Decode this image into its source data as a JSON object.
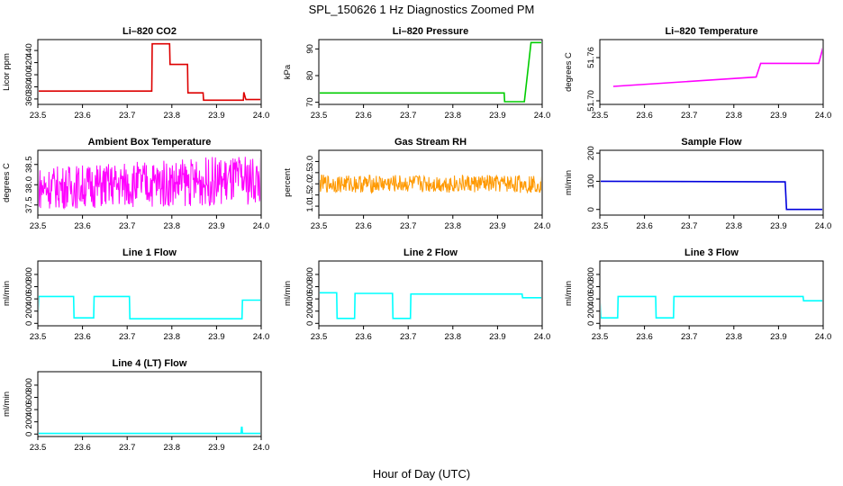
{
  "figure": {
    "title": "SPL_150626  1 Hz Diagnostics Zoomed PM",
    "xlabel": "Hour of Day (UTC)"
  },
  "chart_data": [
    {
      "type": "line",
      "title": "Li–820 CO2",
      "ylabel": "Licor ppm",
      "color": "#dd0000",
      "xlim": [
        23.5,
        24.0
      ],
      "ylim": [
        351,
        458
      ],
      "xticks": [
        "23.5",
        "23.6",
        "23.7",
        "23.8",
        "23.9",
        "24.0"
      ],
      "yticks": [
        "360",
        "380",
        "400",
        "420",
        "440"
      ],
      "series": [
        {
          "x": [
            23.5,
            23.755,
            23.756,
            23.795,
            23.796,
            23.835,
            23.836,
            23.87,
            23.871,
            23.96,
            23.961,
            23.965,
            23.966,
            24.0
          ],
          "y": [
            373,
            373,
            451,
            451,
            417,
            417,
            370,
            370,
            358,
            358,
            371,
            361,
            359,
            359
          ]
        }
      ]
    },
    {
      "type": "line",
      "title": "Li–820 Pressure",
      "ylabel": "kPa",
      "color": "#00cc00",
      "xlim": [
        23.5,
        24.0
      ],
      "ylim": [
        69.2,
        93.5
      ],
      "xticks": [
        "23.5",
        "23.6",
        "23.7",
        "23.8",
        "23.9",
        "24.0"
      ],
      "yticks": [
        "70",
        "80",
        "90"
      ],
      "series": [
        {
          "x": [
            23.5,
            23.915,
            23.916,
            23.96,
            23.975,
            24.0
          ],
          "y": [
            73.5,
            73.5,
            70.2,
            70.2,
            92.4,
            92.4
          ]
        }
      ]
    },
    {
      "type": "line",
      "title": "Li–820 Temperature",
      "ylabel": "degrees C",
      "color": "#ff00ff",
      "xlim": [
        23.5,
        24.0
      ],
      "ylim": [
        51.695,
        51.785
      ],
      "xticks": [
        "23.5",
        "23.6",
        "23.7",
        "23.8",
        "23.9",
        "24.0"
      ],
      "yticks": [
        "51.70",
        "51.76"
      ],
      "series": [
        {
          "x": [
            23.53,
            23.85,
            23.86,
            23.99,
            24.0
          ],
          "y": [
            51.72,
            51.733,
            51.752,
            51.752,
            51.775
          ]
        }
      ]
    },
    {
      "type": "line",
      "title": "Ambient Box Temperature",
      "ylabel": "degrees C",
      "color": "#ff00ff",
      "xlim": [
        23.5,
        24.0
      ],
      "ylim": [
        37.25,
        38.85
      ],
      "xticks": [
        "23.5",
        "23.6",
        "23.7",
        "23.8",
        "23.9",
        "24.0"
      ],
      "yticks": [
        "37.5",
        "38.0",
        "38.5"
      ],
      "series": [
        {
          "x": [
            23.5,
            24.0
          ],
          "ymin": [
            37.4,
            37.5
          ],
          "ymax": [
            38.45,
            38.75
          ]
        }
      ]
    },
    {
      "type": "line",
      "title": "Gas Stream RH",
      "ylabel": "percent",
      "color": "#ff9900",
      "xlim": [
        23.5,
        24.0
      ],
      "ylim": [
        0.6,
        3.5
      ],
      "xticks": [
        "23.5",
        "23.6",
        "23.7",
        "23.8",
        "23.9",
        "24.0"
      ],
      "yticks": [
        "1.0",
        "1.5",
        "2.0",
        "2.5",
        "3.0"
      ],
      "series": [
        {
          "x": [
            23.5,
            24.0
          ],
          "ymin": [
            1.6,
            1.6
          ],
          "ymax": [
            2.4,
            2.4
          ]
        }
      ]
    },
    {
      "type": "line",
      "title": "Sample Flow",
      "ylabel": "ml/min",
      "color": "#0000dd",
      "xlim": [
        23.5,
        24.0
      ],
      "ylim": [
        -20,
        210
      ],
      "xticks": [
        "23.5",
        "23.6",
        "23.7",
        "23.8",
        "23.9",
        "24.0"
      ],
      "yticks": [
        "0",
        "100",
        "200"
      ],
      "series": [
        {
          "x": [
            23.5,
            23.915,
            23.918,
            24.0
          ],
          "y": [
            100,
            98,
            0,
            0
          ]
        }
      ]
    },
    {
      "type": "line",
      "title": "Line 1 Flow",
      "ylabel": "ml/min",
      "color": "#00ffff",
      "xlim": [
        23.5,
        24.0
      ],
      "ylim": [
        -40,
        1020
      ],
      "xticks": [
        "23.5",
        "23.6",
        "23.7",
        "23.8",
        "23.9",
        "24.0"
      ],
      "yticks": [
        "0",
        "200",
        "400",
        "600",
        "800"
      ],
      "series": [
        {
          "x": [
            23.5,
            23.502,
            23.58,
            23.581,
            23.625,
            23.626,
            23.705,
            23.706,
            23.957,
            23.958,
            24.0
          ],
          "y": [
            100,
            440,
            440,
            90,
            90,
            440,
            440,
            75,
            75,
            380,
            380
          ]
        }
      ]
    },
    {
      "type": "line",
      "title": "Line 2 Flow",
      "ylabel": "ml/min",
      "color": "#00ffff",
      "xlim": [
        23.5,
        24.0
      ],
      "ylim": [
        -40,
        1020
      ],
      "xticks": [
        "23.5",
        "23.6",
        "23.7",
        "23.8",
        "23.9",
        "24.0"
      ],
      "yticks": [
        "0",
        "200",
        "400",
        "600",
        "800"
      ],
      "series": [
        {
          "x": [
            23.5,
            23.54,
            23.541,
            23.58,
            23.581,
            23.665,
            23.666,
            23.705,
            23.706,
            23.955,
            23.956,
            24.0
          ],
          "y": [
            500,
            500,
            80,
            80,
            490,
            490,
            80,
            80,
            480,
            480,
            420,
            420
          ]
        }
      ]
    },
    {
      "type": "line",
      "title": "Line 3 Flow",
      "ylabel": "ml/min",
      "color": "#00ffff",
      "xlim": [
        23.5,
        24.0
      ],
      "ylim": [
        -40,
        1020
      ],
      "xticks": [
        "23.5",
        "23.6",
        "23.7",
        "23.8",
        "23.9",
        "24.0"
      ],
      "yticks": [
        "0",
        "200",
        "400",
        "600",
        "800"
      ],
      "series": [
        {
          "x": [
            23.5,
            23.502,
            23.54,
            23.541,
            23.625,
            23.626,
            23.665,
            23.666,
            23.955,
            23.956,
            24.0
          ],
          "y": [
            420,
            90,
            90,
            440,
            440,
            90,
            90,
            440,
            440,
            370,
            370
          ]
        }
      ]
    },
    {
      "type": "line",
      "title": "Line 4 (LT) Flow",
      "ylabel": "ml/min",
      "color": "#00ffff",
      "xlim": [
        23.5,
        24.0
      ],
      "ylim": [
        -40,
        1020
      ],
      "xticks": [
        "23.5",
        "23.6",
        "23.7",
        "23.8",
        "23.9",
        "24.0"
      ],
      "yticks": [
        "0",
        "200",
        "400",
        "600",
        "800"
      ],
      "series": [
        {
          "x": [
            23.5,
            23.955,
            23.956,
            23.957,
            23.958,
            24.0
          ],
          "y": [
            10,
            10,
            110,
            110,
            10,
            10
          ]
        }
      ]
    }
  ]
}
